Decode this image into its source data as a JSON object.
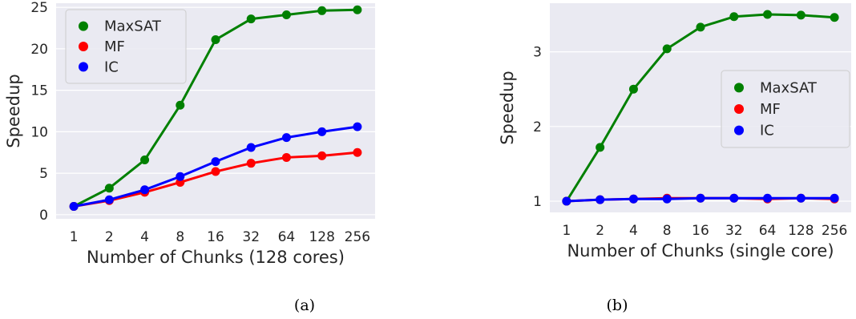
{
  "chart_data": [
    {
      "type": "line",
      "caption": "(a)",
      "categories": [
        "1",
        "2",
        "4",
        "8",
        "16",
        "32",
        "64",
        "128",
        "256"
      ],
      "xlabel": "Number of Chunks (128 cores)",
      "ylabel": "Speedup",
      "ylim": [
        -0.5,
        25.5
      ],
      "yticks": [
        0,
        5,
        10,
        15,
        20,
        25
      ],
      "grid": true,
      "legend_position": "top-left",
      "series": [
        {
          "name": "MaxSAT",
          "color": "#008000",
          "values": [
            1.0,
            3.2,
            6.6,
            13.2,
            21.1,
            23.6,
            24.1,
            24.6,
            24.7
          ]
        },
        {
          "name": "MF",
          "color": "#ff0000",
          "values": [
            1.0,
            1.7,
            2.7,
            3.9,
            5.2,
            6.2,
            6.9,
            7.1,
            7.5
          ]
        },
        {
          "name": "IC",
          "color": "#0000ff",
          "values": [
            1.0,
            1.8,
            3.0,
            4.6,
            6.4,
            8.1,
            9.3,
            10.0,
            10.6
          ]
        }
      ]
    },
    {
      "type": "line",
      "caption": "(b)",
      "categories": [
        "1",
        "2",
        "4",
        "8",
        "16",
        "32",
        "64",
        "128",
        "256"
      ],
      "xlabel": "Number of Chunks (single core)",
      "ylabel": "Speedup",
      "ylim": [
        0.85,
        3.65
      ],
      "yticks": [
        1,
        2,
        3
      ],
      "grid": true,
      "legend_position": "center-right",
      "series": [
        {
          "name": "MaxSAT",
          "color": "#008000",
          "values": [
            1.0,
            1.72,
            2.5,
            3.04,
            3.33,
            3.47,
            3.5,
            3.49,
            3.46
          ]
        },
        {
          "name": "MF",
          "color": "#ff0000",
          "values": [
            1.0,
            1.02,
            1.03,
            1.04,
            1.04,
            1.04,
            1.03,
            1.04,
            1.03
          ]
        },
        {
          "name": "IC",
          "color": "#0000ff",
          "values": [
            1.0,
            1.02,
            1.03,
            1.03,
            1.04,
            1.04,
            1.04,
            1.04,
            1.04
          ]
        }
      ]
    }
  ]
}
